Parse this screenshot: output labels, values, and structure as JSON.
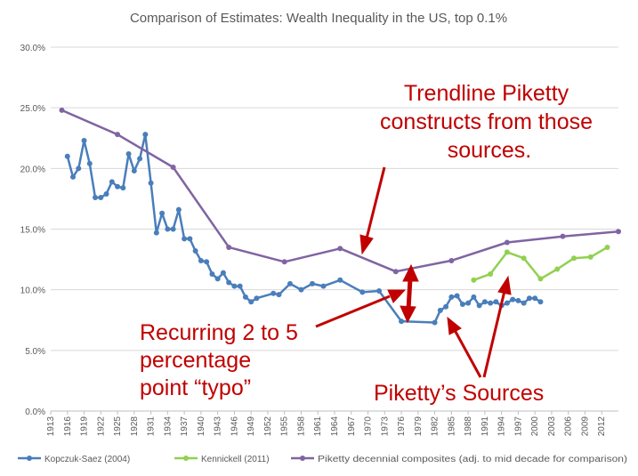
{
  "chart_data": {
    "type": "line",
    "title": "Comparison of Estimates: Wealth Inequality in the US, top 0.1%",
    "xlabel": "",
    "ylabel": "",
    "xlim": [
      1913,
      2015
    ],
    "ylim": [
      0,
      30
    ],
    "y_ticks": [
      "0.0%",
      "5.0%",
      "10.0%",
      "15.0%",
      "20.0%",
      "25.0%",
      "30.0%"
    ],
    "x_ticks": [
      "1913",
      "1916",
      "1919",
      "1922",
      "1925",
      "1928",
      "1931",
      "1934",
      "1937",
      "1940",
      "1943",
      "1946",
      "1949",
      "1952",
      "1955",
      "1958",
      "1961",
      "1964",
      "1967",
      "1970",
      "1973",
      "1976",
      "1979",
      "1982",
      "1985",
      "1988",
      "1991",
      "1994",
      "1997",
      "2000",
      "2003",
      "2006",
      "2009",
      "2012"
    ],
    "grid": true,
    "legend_position": "bottom",
    "series": [
      {
        "name": "Kopczuk-Saez (2004)",
        "color": "#4a7ebb",
        "points": [
          [
            1916,
            21.0
          ],
          [
            1917,
            19.3
          ],
          [
            1918,
            20.0
          ],
          [
            1919,
            22.3
          ],
          [
            1920,
            20.4
          ],
          [
            1921,
            17.6
          ],
          [
            1922,
            17.6
          ],
          [
            1923,
            17.9
          ],
          [
            1924,
            18.9
          ],
          [
            1925,
            18.5
          ],
          [
            1926,
            18.4
          ],
          [
            1927,
            21.2
          ],
          [
            1928,
            19.8
          ],
          [
            1929,
            20.8
          ],
          [
            1930,
            22.8
          ],
          [
            1931,
            18.8
          ],
          [
            1932,
            14.7
          ],
          [
            1933,
            16.3
          ],
          [
            1934,
            15.0
          ],
          [
            1935,
            15.0
          ],
          [
            1936,
            16.6
          ],
          [
            1937,
            14.2
          ],
          [
            1938,
            14.2
          ],
          [
            1939,
            13.2
          ],
          [
            1940,
            12.4
          ],
          [
            1941,
            12.3
          ],
          [
            1942,
            11.3
          ],
          [
            1943,
            10.9
          ],
          [
            1944,
            11.4
          ],
          [
            1945,
            10.6
          ],
          [
            1946,
            10.3
          ],
          [
            1947,
            10.3
          ],
          [
            1948,
            9.4
          ],
          [
            1949,
            9.0
          ],
          [
            1950,
            9.3
          ],
          [
            1953,
            9.7
          ],
          [
            1954,
            9.6
          ],
          [
            1956,
            10.5
          ],
          [
            1958,
            10.0
          ],
          [
            1960,
            10.5
          ],
          [
            1962,
            10.3
          ],
          [
            1965,
            10.8
          ],
          [
            1969,
            9.8
          ],
          [
            1972,
            9.9
          ],
          [
            1976,
            7.4
          ],
          [
            1982,
            7.3
          ],
          [
            1983,
            8.3
          ],
          [
            1984,
            8.6
          ],
          [
            1985,
            9.4
          ],
          [
            1986,
            9.5
          ],
          [
            1987,
            8.8
          ],
          [
            1988,
            8.9
          ],
          [
            1989,
            9.4
          ],
          [
            1990,
            8.7
          ],
          [
            1991,
            9.0
          ],
          [
            1992,
            8.9
          ],
          [
            1993,
            9.0
          ],
          [
            1994,
            8.7
          ],
          [
            1995,
            8.9
          ],
          [
            1996,
            9.2
          ],
          [
            1997,
            9.1
          ],
          [
            1998,
            8.9
          ],
          [
            1999,
            9.3
          ],
          [
            2000,
            9.3
          ],
          [
            2001,
            9.0
          ]
        ]
      },
      {
        "name": "Kennickell (2011)",
        "color": "#92d050",
        "points": [
          [
            1989,
            10.8
          ],
          [
            1992,
            11.3
          ],
          [
            1995,
            13.1
          ],
          [
            1998,
            12.6
          ],
          [
            2001,
            10.9
          ],
          [
            2004,
            11.7
          ],
          [
            2007,
            12.6
          ],
          [
            2010,
            12.7
          ],
          [
            2013,
            13.5
          ]
        ]
      },
      {
        "name": "Piketty decennial composites (adj. to mid decade for comparison)",
        "color": "#8064a2",
        "points": [
          [
            1915,
            24.8
          ],
          [
            1925,
            22.8
          ],
          [
            1935,
            20.1
          ],
          [
            1945,
            13.5
          ],
          [
            1955,
            12.3
          ],
          [
            1965,
            13.4
          ],
          [
            1975,
            11.5
          ],
          [
            1985,
            12.4
          ],
          [
            1995,
            13.9
          ],
          [
            2005,
            14.4
          ],
          [
            2015,
            14.8
          ]
        ]
      }
    ],
    "annotations": [
      {
        "id": "trendline",
        "lines": [
          "Trendline Piketty",
          "constructs from those",
          "sources."
        ]
      },
      {
        "id": "typo",
        "lines": [
          "Recurring 2 to 5",
          "percentage",
          "point “typo”"
        ]
      },
      {
        "id": "sources",
        "lines": [
          "Piketty’s Sources"
        ]
      }
    ],
    "annotation_color": "#c00000"
  }
}
